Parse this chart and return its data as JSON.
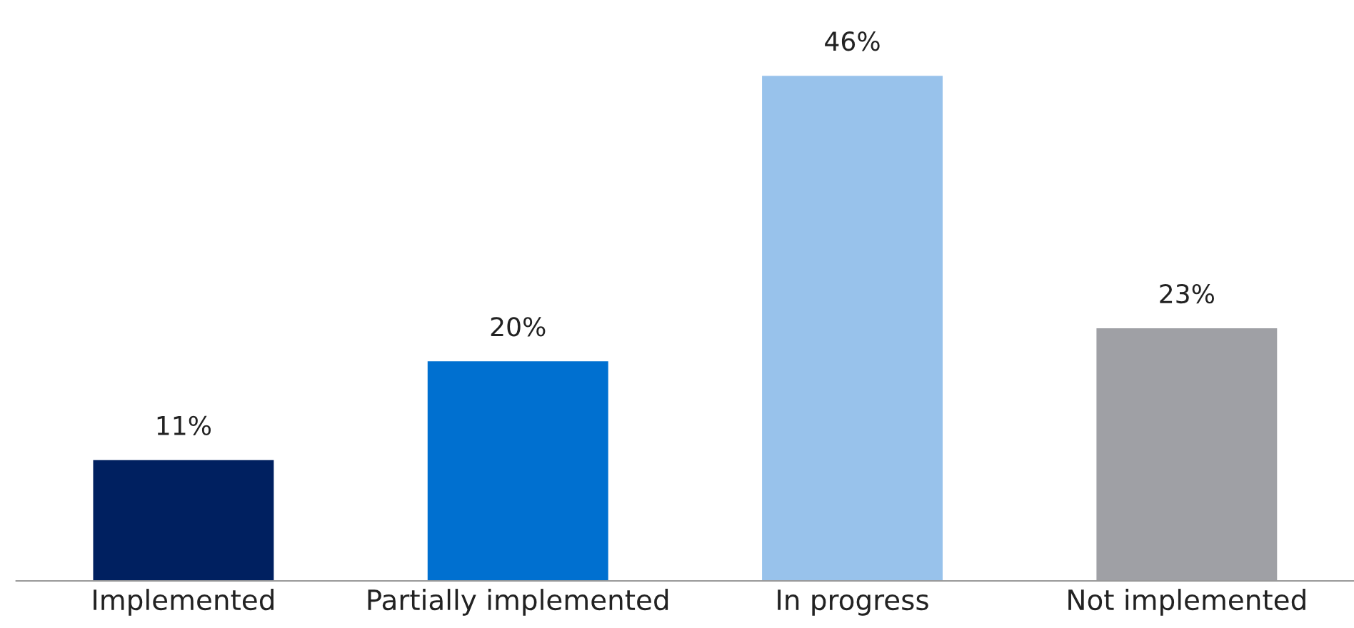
{
  "chart_data": {
    "type": "bar",
    "categories": [
      "Implemented",
      "Partially implemented",
      "In progress",
      "Not implemented"
    ],
    "values": [
      11,
      20,
      46,
      23
    ],
    "colors": [
      "#002060",
      "#0070d0",
      "#98c2eb",
      "#9fa0a5"
    ],
    "value_labels": [
      "11%",
      "20%",
      "46%",
      "23%"
    ],
    "grid": false,
    "legend": false
  }
}
